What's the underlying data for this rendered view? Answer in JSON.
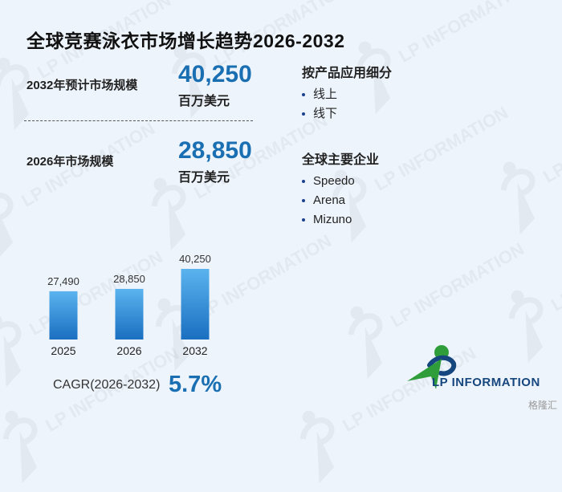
{
  "title": "全球竞赛泳衣市场增长趋势2026-2032",
  "forecast": {
    "label": "2032年预计市场规模",
    "value": "40,250",
    "unit": "百万美元"
  },
  "current": {
    "label": "2026年市场规模",
    "value": "28,850",
    "unit": "百万美元"
  },
  "segments": {
    "title": "按产品应用细分",
    "items": [
      "线上",
      "线下"
    ]
  },
  "companies": {
    "title": "全球主要企业",
    "items": [
      "Speedo",
      "Arena",
      "Mizuno"
    ]
  },
  "cagr": {
    "label": "CAGR(2026-2032)",
    "value": "5.7%"
  },
  "logo": {
    "text": "LP INFORMATION"
  },
  "watermark": {
    "text": "LP INFORMATION"
  },
  "source": "格隆汇",
  "colors": {
    "accent": "#1a6fb3",
    "bar_top": "#5bb3ee",
    "bar_bottom": "#1a6fc0",
    "logo_green": "#2f9e3a",
    "logo_blue": "#16467e"
  },
  "chart_data": {
    "type": "bar",
    "categories": [
      "2025",
      "2026",
      "2032"
    ],
    "values": [
      27490,
      28850,
      40250
    ],
    "value_labels": [
      "27,490",
      "28,850",
      "40,250"
    ],
    "title": "",
    "xlabel": "",
    "ylabel": "",
    "grid": false
  }
}
